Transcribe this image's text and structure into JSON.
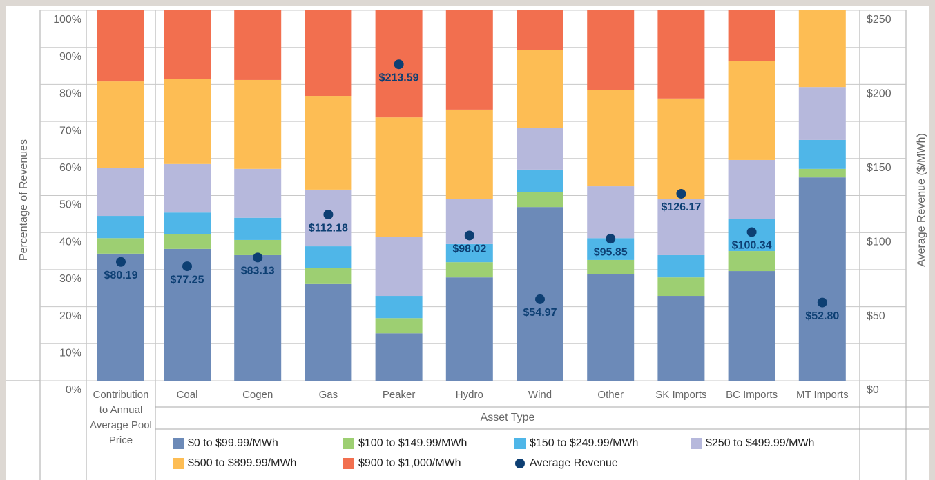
{
  "chart_data": {
    "type": "bar",
    "stacked": true,
    "categories": [
      "Contribution to Annual Average Pool Price",
      "Coal",
      "Cogen",
      "Gas",
      "Peaker",
      "Hydro",
      "Wind",
      "Other",
      "SK Imports",
      "BC Imports",
      "MT Imports"
    ],
    "x_label": "Asset Type",
    "y_label": "Percentage of Revenues",
    "y2_label": "Average Revenue ($/MWh)",
    "ylim": [
      0,
      100
    ],
    "yticks": [
      {
        "value": 0,
        "label": "0%"
      },
      {
        "value": 10,
        "label": "10%"
      },
      {
        "value": 20,
        "label": "20%"
      },
      {
        "value": 30,
        "label": "30%"
      },
      {
        "value": 40,
        "label": "40%"
      },
      {
        "value": 50,
        "label": "50%"
      },
      {
        "value": 60,
        "label": "60%"
      },
      {
        "value": 70,
        "label": "70%"
      },
      {
        "value": 80,
        "label": "80%"
      },
      {
        "value": 90,
        "label": "90%"
      },
      {
        "value": 100,
        "label": "100%"
      }
    ],
    "y2lim": [
      0,
      250
    ],
    "y2ticks": [
      {
        "value": 0,
        "label": "$0"
      },
      {
        "value": 50,
        "label": "$50"
      },
      {
        "value": 100,
        "label": "$100"
      },
      {
        "value": 150,
        "label": "$150"
      },
      {
        "value": 200,
        "label": "$200"
      },
      {
        "value": 250,
        "label": "$250"
      }
    ],
    "grid": true,
    "series": [
      {
        "name": "$0 to $99.99/MWh",
        "color": "#6c8ab8",
        "values": [
          34.3,
          35.6,
          33.9,
          26.1,
          12.8,
          27.9,
          46.9,
          28.7,
          22.9,
          29.6,
          54.9
        ]
      },
      {
        "name": "$100 to $149.99/MWh",
        "color": "#9dcf72",
        "values": [
          4.2,
          3.9,
          4.1,
          4.3,
          4.1,
          4.1,
          4.1,
          3.9,
          5.0,
          5.4,
          2.3
        ]
      },
      {
        "name": "$150 to $249.99/MWh",
        "color": "#4fb6e8",
        "values": [
          6.0,
          5.9,
          6.0,
          5.9,
          6.0,
          4.9,
          6.0,
          5.9,
          6.0,
          8.6,
          7.8
        ]
      },
      {
        "name": "$250 to $499.99/MWh",
        "color": "#b6b8dc",
        "values": [
          13.0,
          13.1,
          13.2,
          15.3,
          16.0,
          12.1,
          11.2,
          14.0,
          15.1,
          16.0,
          14.3
        ]
      },
      {
        "name": "$500 to $899.99/MWh",
        "color": "#fdbd54",
        "values": [
          23.3,
          22.9,
          24.0,
          25.3,
          32.2,
          24.2,
          21.0,
          25.9,
          27.2,
          26.8,
          20.7
        ]
      },
      {
        "name": "$900 to $1,000/MWh",
        "color": "#f26f4f",
        "values": [
          19.2,
          18.6,
          18.8,
          23.1,
          28.9,
          26.8,
          10.8,
          21.6,
          23.8,
          13.6,
          0
        ]
      },
      {
        "name": "Average Revenue",
        "color": "#0d3f73",
        "type": "scatter",
        "axis": "y2",
        "values": [
          80.19,
          77.25,
          83.13,
          112.18,
          213.59,
          98.02,
          54.97,
          95.85,
          126.17,
          100.34,
          52.8
        ],
        "value_labels": [
          "$80.19",
          "$77.25",
          "$83.13",
          "$112.18",
          "$213.59",
          "$98.02",
          "$54.97",
          "$95.85",
          "$126.17",
          "$100.34",
          "$52.80"
        ]
      }
    ]
  }
}
